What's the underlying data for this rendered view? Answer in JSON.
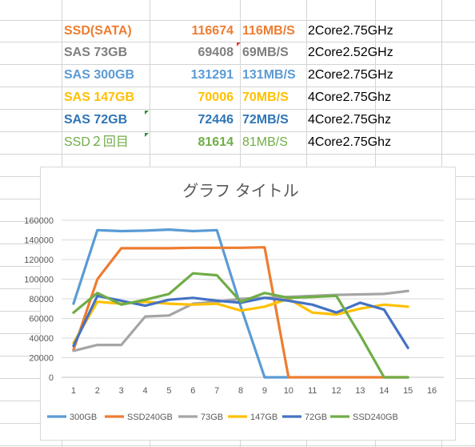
{
  "rows": [
    {
      "name": "SSD(SATA)",
      "value": "116674",
      "speed": "116MB/S",
      "cpu": "2Core2.75GHz",
      "color": "#ED7D31",
      "bold": true
    },
    {
      "name": "SAS 73GB",
      "value": "69408",
      "speed": "69MB/S",
      "cpu": "2Core2.52GHz",
      "color": "#7F7F7F",
      "bold": true
    },
    {
      "name": "SAS 300GB",
      "value": "131291",
      "speed": "131MB/S",
      "cpu": "2Core2.75GHz",
      "color": "#5B9BD5",
      "bold": true
    },
    {
      "name": "SAS 147GB",
      "value": "70006",
      "speed": "70MB/S",
      "cpu": "4Core2.75Ghz",
      "color": "#FFC000",
      "bold": true
    },
    {
      "name": "SAS 72GB",
      "value": "72446",
      "speed": "72MB/S",
      "cpu": "4Core2.75Ghz",
      "color": "#2E75B6",
      "bold": true
    },
    {
      "name": "SSD２回目",
      "value": "81614",
      "speed": "81MB/S",
      "cpu": "4Core2.75Ghz",
      "color": "#70AD47",
      "bold": false
    }
  ],
  "chart_data": {
    "type": "line",
    "title": "グラフ タイトル",
    "x": [
      1,
      2,
      3,
      4,
      5,
      6,
      7,
      8,
      9,
      10,
      11,
      12,
      13,
      14,
      15,
      16
    ],
    "ylim": [
      0,
      160000
    ],
    "yticks": [
      0,
      20000,
      40000,
      60000,
      80000,
      100000,
      120000,
      140000,
      160000
    ],
    "ytick_labels": [
      "0",
      "20000",
      "40000",
      "60000",
      "80000",
      "100000",
      "120000",
      "140000",
      "160000"
    ],
    "xtick_labels": [
      "1",
      "2",
      "3",
      "4",
      "5",
      "6",
      "7",
      "8",
      "9",
      "10",
      "11",
      "12",
      "13",
      "14",
      "15",
      "16"
    ],
    "grid": true,
    "legend": "bottom",
    "series": [
      {
        "name": "300GB",
        "color": "#5B9BD5",
        "values": [
          75000,
          150000,
          149000,
          149500,
          150500,
          149000,
          150000,
          72000,
          0,
          0,
          null,
          null,
          null,
          null,
          null,
          null
        ]
      },
      {
        "name": "SSD240GB",
        "color": "#ED7D31",
        "values": [
          28000,
          100000,
          131500,
          131500,
          131500,
          132000,
          132000,
          132000,
          132500,
          0,
          0,
          0,
          0,
          0,
          0,
          null
        ]
      },
      {
        "name": "73GB",
        "color": "#A5A5A5",
        "values": [
          27000,
          33000,
          33000,
          62000,
          63000,
          75000,
          77000,
          80000,
          81000,
          82000,
          83000,
          84000,
          84500,
          85000,
          88000,
          null
        ]
      },
      {
        "name": "147GB",
        "color": "#FFC000",
        "values": [
          35000,
          77000,
          75000,
          77000,
          75000,
          74000,
          75000,
          68000,
          72000,
          80000,
          66000,
          64000,
          70000,
          74000,
          72000,
          null
        ]
      },
      {
        "name": "72GB",
        "color": "#4472C4",
        "values": [
          32000,
          83000,
          78000,
          73000,
          79000,
          81000,
          78000,
          76000,
          81000,
          78000,
          74000,
          66000,
          76000,
          69000,
          30000,
          null
        ]
      },
      {
        "name": "SSD240GB",
        "color": "#70AD47",
        "values": [
          66000,
          86000,
          74000,
          79000,
          85000,
          106000,
          104000,
          77000,
          86000,
          81000,
          82000,
          83000,
          43000,
          0,
          0,
          null
        ]
      }
    ]
  }
}
